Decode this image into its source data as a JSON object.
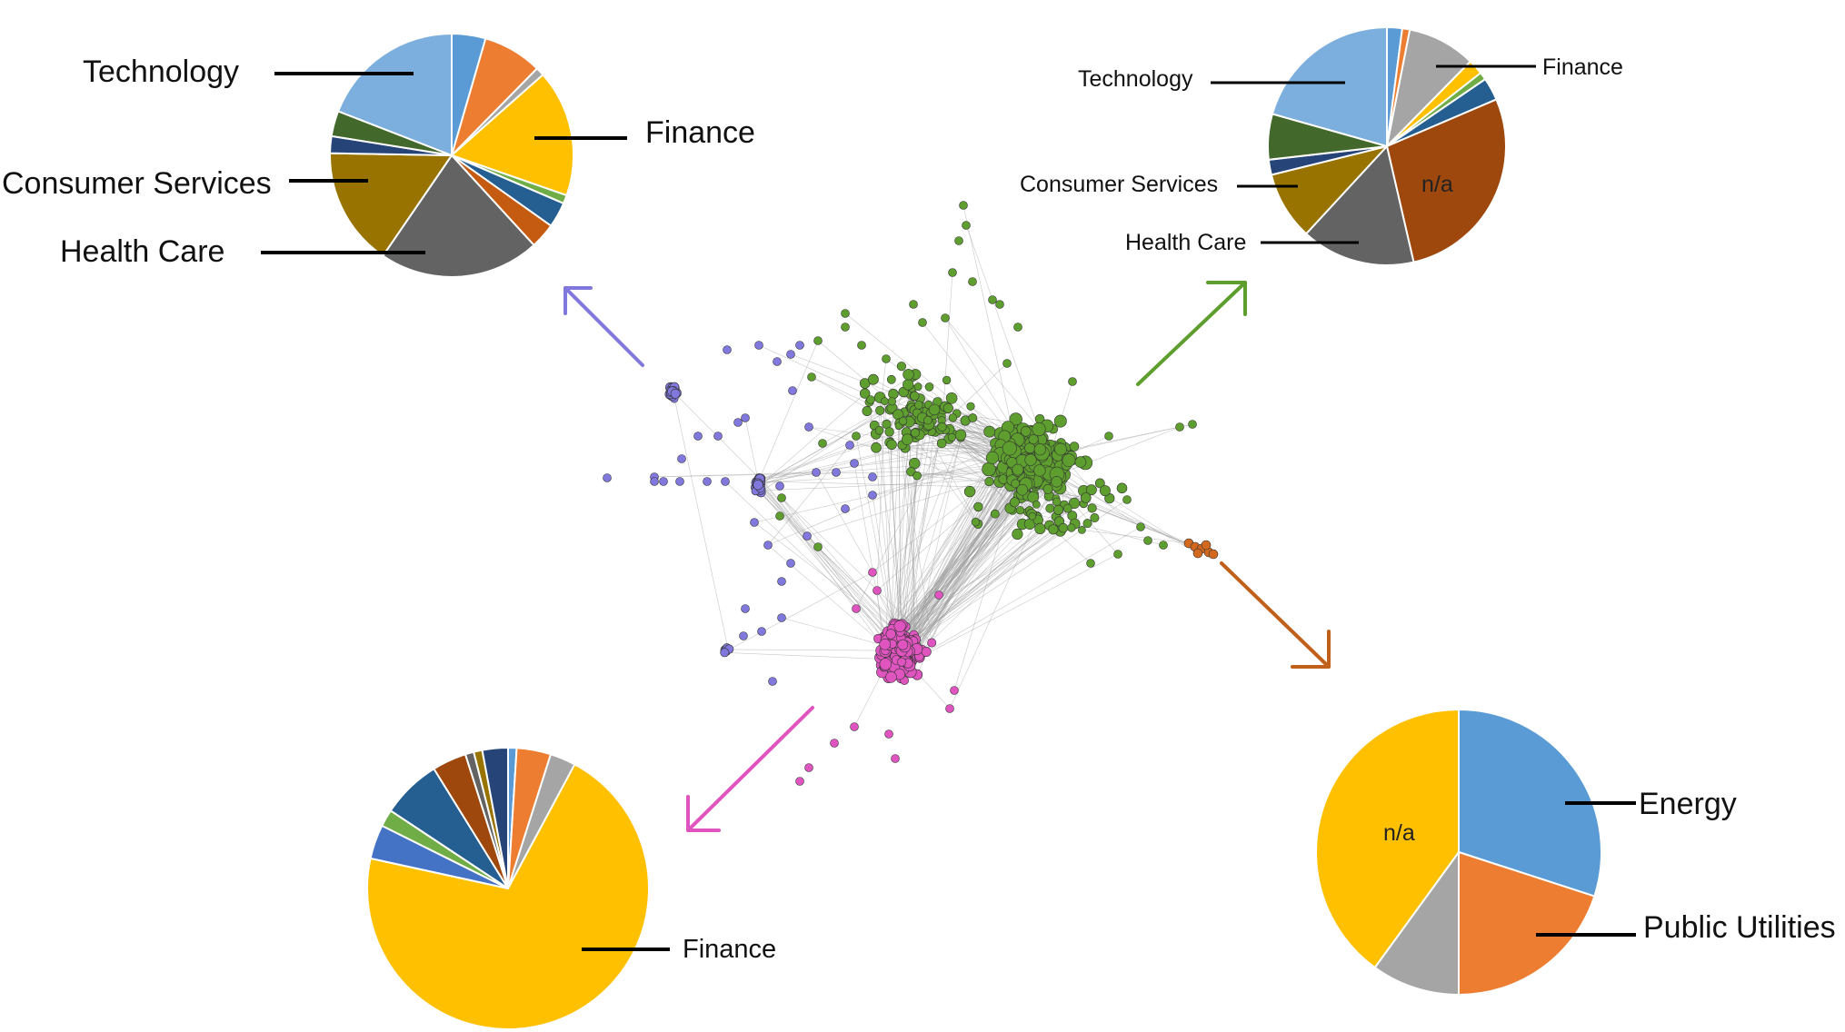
{
  "colors": {
    "cluster_purple": "#8078dc",
    "cluster_green": "#5d9e2e",
    "cluster_pink": "#e054c0",
    "cluster_orange": "#d2691e",
    "edge": "#9a9a9a",
    "leader": "#000000",
    "pie_stroke": "#ffffff"
  },
  "chart_data": [
    {
      "type": "pie",
      "cluster": "purple",
      "slices": [
        {
          "value": 4,
          "color": "#5b9bd5"
        },
        {
          "value": 7,
          "color": "#ed7d31"
        },
        {
          "value": 1,
          "color": "#a5a5a5"
        },
        {
          "value": 15,
          "color": "#ffc000",
          "label": "Finance"
        },
        {
          "value": 1,
          "color": "#70ad47"
        },
        {
          "value": 3,
          "color": "#255e91"
        },
        {
          "value": 3,
          "color": "#c55a11"
        },
        {
          "value": 19,
          "color": "#636363",
          "label": "Health Care"
        },
        {
          "value": 14,
          "color": "#997300",
          "label": "Consumer Services"
        },
        {
          "value": 2,
          "color": "#264478"
        },
        {
          "value": 3,
          "color": "#43682b"
        },
        {
          "value": 17,
          "color": "#7cafdd",
          "label": "Technology"
        }
      ]
    },
    {
      "type": "pie",
      "cluster": "green",
      "slices": [
        {
          "value": 2,
          "color": "#5b9bd5"
        },
        {
          "value": 1,
          "color": "#ed7d31"
        },
        {
          "value": 9,
          "color": "#a5a5a5",
          "label": "Finance"
        },
        {
          "value": 2,
          "color": "#ffc000"
        },
        {
          "value": 1,
          "color": "#70ad47"
        },
        {
          "value": 3,
          "color": "#255e91"
        },
        {
          "value": 27,
          "color": "#9e480e",
          "label": "n/a"
        },
        {
          "value": 15,
          "color": "#636363",
          "label": "Health Care"
        },
        {
          "value": 9,
          "color": "#997300",
          "label": "Consumer Services"
        },
        {
          "value": 2,
          "color": "#264478"
        },
        {
          "value": 6,
          "color": "#43682b"
        },
        {
          "value": 20,
          "color": "#7cafdd",
          "label": "Technology"
        }
      ]
    },
    {
      "type": "pie",
      "cluster": "pink",
      "slices": [
        {
          "value": 1,
          "color": "#5b9bd5"
        },
        {
          "value": 4,
          "color": "#ed7d31"
        },
        {
          "value": 3,
          "color": "#a5a5a5"
        },
        {
          "value": 72,
          "color": "#ffc000",
          "label": "Finance"
        },
        {
          "value": 4,
          "color": "#4472c4"
        },
        {
          "value": 2,
          "color": "#70ad47"
        },
        {
          "value": 7,
          "color": "#255e91"
        },
        {
          "value": 4,
          "color": "#9e480e"
        },
        {
          "value": 1,
          "color": "#636363"
        },
        {
          "value": 1,
          "color": "#997300"
        },
        {
          "value": 3,
          "color": "#264478"
        }
      ]
    },
    {
      "type": "pie",
      "cluster": "orange",
      "slices": [
        {
          "value": 30,
          "color": "#5b9bd5",
          "label": "Energy"
        },
        {
          "value": 20,
          "color": "#ed7d31",
          "label": "Public Utilities"
        },
        {
          "value": 10,
          "color": "#a5a5a5"
        },
        {
          "value": 40,
          "color": "#ffc000",
          "label": "n/a"
        }
      ]
    }
  ],
  "labels": {
    "pie1": {
      "technology": "Technology",
      "finance": "Finance",
      "consumer_services": "Consumer Services",
      "health_care": "Health Care"
    },
    "pie2": {
      "technology": "Technology",
      "finance": "Finance",
      "consumer_services": "Consumer Services",
      "health_care": "Health Care",
      "na": "n/a"
    },
    "pie3": {
      "finance": "Finance"
    },
    "pie4": {
      "energy": "Energy",
      "public_utilities": "Public Utilities",
      "na": "n/a"
    }
  }
}
